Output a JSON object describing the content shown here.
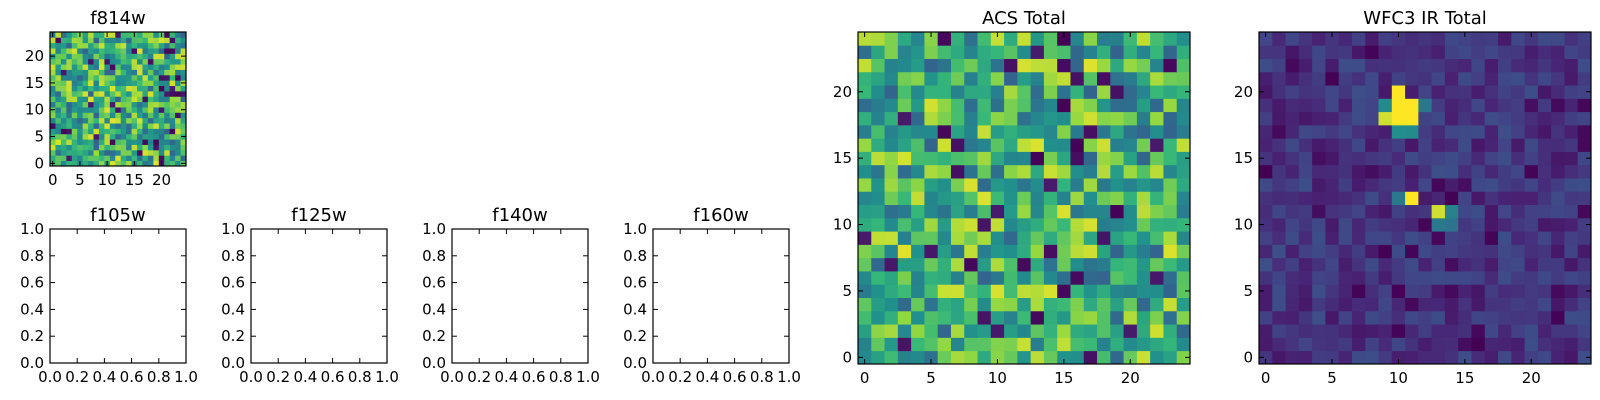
{
  "chart_data": [
    {
      "type": "heatmap",
      "title": "f814w",
      "xlim": [
        0,
        24
      ],
      "ylim": [
        0,
        24
      ],
      "xticks": [
        "0",
        "5",
        "10",
        "15",
        "20"
      ],
      "yticks": [
        "0",
        "5",
        "10",
        "15",
        "20"
      ],
      "colormap": "viridis",
      "grid_size": 25,
      "pattern": "noise",
      "seed": 11
    },
    {
      "type": "line",
      "title": "f105w",
      "xlim": [
        0,
        1
      ],
      "ylim": [
        0,
        1
      ],
      "xticks": [
        "0.0",
        "0.2",
        "0.4",
        "0.6",
        "0.8",
        "1.0"
      ],
      "yticks": [
        "0.0",
        "0.2",
        "0.4",
        "0.6",
        "0.8",
        "1.0"
      ],
      "series": []
    },
    {
      "type": "line",
      "title": "f125w",
      "xlim": [
        0,
        1
      ],
      "ylim": [
        0,
        1
      ],
      "xticks": [
        "0.0",
        "0.2",
        "0.4",
        "0.6",
        "0.8",
        "1.0"
      ],
      "yticks": [
        "0.0",
        "0.2",
        "0.4",
        "0.6",
        "0.8",
        "1.0"
      ],
      "series": []
    },
    {
      "type": "line",
      "title": "f140w",
      "xlim": [
        0,
        1
      ],
      "ylim": [
        0,
        1
      ],
      "xticks": [
        "0.0",
        "0.2",
        "0.4",
        "0.6",
        "0.8",
        "1.0"
      ],
      "yticks": [
        "0.0",
        "0.2",
        "0.4",
        "0.6",
        "0.8",
        "1.0"
      ],
      "series": []
    },
    {
      "type": "line",
      "title": "f160w",
      "xlim": [
        0,
        1
      ],
      "ylim": [
        0,
        1
      ],
      "xticks": [
        "0.0",
        "0.2",
        "0.4",
        "0.6",
        "0.8",
        "1.0"
      ],
      "yticks": [
        "0.0",
        "0.2",
        "0.4",
        "0.6",
        "0.8",
        "1.0"
      ],
      "series": []
    },
    {
      "type": "heatmap",
      "title": "ACS Total",
      "xlim": [
        0,
        24
      ],
      "ylim": [
        0,
        24
      ],
      "xticks": [
        "0",
        "5",
        "10",
        "15",
        "20"
      ],
      "yticks": [
        "0",
        "5",
        "10",
        "15",
        "20"
      ],
      "colormap": "viridis",
      "grid_size": 25,
      "pattern": "noise",
      "seed": 23
    },
    {
      "type": "heatmap",
      "title": "WFC3 IR Total",
      "xlim": [
        0,
        24
      ],
      "ylim": [
        0,
        24
      ],
      "xticks": [
        "0",
        "5",
        "10",
        "15",
        "20"
      ],
      "yticks": [
        "0",
        "5",
        "10",
        "15",
        "20"
      ],
      "colormap": "viridis",
      "grid_size": 25,
      "pattern": "sources",
      "seed": 37,
      "bright_sources": [
        {
          "x": 10,
          "y": 19,
          "value": 1.0
        },
        {
          "x": 11,
          "y": 19,
          "value": 1.0
        },
        {
          "x": 10,
          "y": 18,
          "value": 1.0
        },
        {
          "x": 11,
          "y": 18,
          "value": 1.0
        },
        {
          "x": 10,
          "y": 20,
          "value": 1.0
        },
        {
          "x": 9,
          "y": 18,
          "value": 0.95
        },
        {
          "x": 11,
          "y": 17,
          "value": 0.6
        },
        {
          "x": 10,
          "y": 17,
          "value": 0.62
        },
        {
          "x": 12,
          "y": 19,
          "value": 0.5
        },
        {
          "x": 9,
          "y": 19,
          "value": 0.6
        },
        {
          "x": 11,
          "y": 12,
          "value": 1.0
        },
        {
          "x": 10,
          "y": 12,
          "value": 0.5
        },
        {
          "x": 13,
          "y": 11,
          "value": 0.95
        },
        {
          "x": 14,
          "y": 11,
          "value": 0.55
        },
        {
          "x": 13,
          "y": 10,
          "value": 0.5
        },
        {
          "x": 14,
          "y": 10,
          "value": 0.48
        }
      ]
    }
  ]
}
